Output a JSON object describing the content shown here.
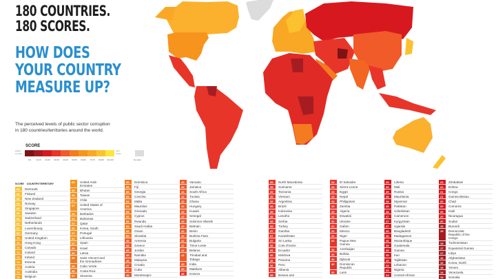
{
  "header": {
    "line1": "180 COUNTRIES.\n180 SCORES.",
    "line2": "HOW DOES\nYOUR COUNTRY\nMEASURE UP?"
  },
  "description": "The perceived levels of public sector corruption\nin 180 countries/territories around the world.",
  "legend": {
    "title": "SCORE",
    "low_label": "Highly Corrupt",
    "high_label": "Very Clean",
    "no_data": "No data",
    "ranges": [
      "0-9",
      "10-19",
      "20-29",
      "30-39",
      "40-49",
      "50-59",
      "60-69",
      "70-79",
      "80-89",
      "90-100"
    ],
    "colors": [
      "#7d1315",
      "#a51d22",
      "#d7191f",
      "#e8352a",
      "#f15a29",
      "#f47b20",
      "#f7941d",
      "#f9a825",
      "#fcc12e",
      "#fde53a"
    ],
    "no_data_color": "#dcdcdc"
  },
  "table": {
    "score_header": "SCORE",
    "country_header": "COUNTRY/TERRITORY",
    "columns": [
      [
        [
          88,
          "Denmark"
        ],
        [
          88,
          "Finland"
        ],
        [
          88,
          "New Zealand"
        ],
        [
          85,
          "Norway"
        ],
        [
          85,
          "Singapore"
        ],
        [
          85,
          "Sweden"
        ],
        [
          84,
          "Switzerland"
        ],
        [
          82,
          "Netherlands"
        ],
        [
          81,
          "Luxembourg"
        ],
        [
          80,
          "Germany"
        ],
        [
          78,
          "United Kingdom"
        ],
        [
          76,
          "Hong Kong"
        ],
        [
          74,
          "Canada"
        ],
        [
          74,
          "Iceland"
        ],
        [
          74,
          "Ireland"
        ],
        [
          74,
          "Estonia"
        ],
        [
          74,
          "Austria"
        ],
        [
          73,
          "Australia"
        ],
        [
          73,
          "Belgium"
        ]
      ],
      [
        [
          69,
          "United Arab\nEmirates"
        ],
        [
          68,
          "Bhutan"
        ],
        [
          68,
          "Taiwan"
        ],
        [
          67,
          "Chile"
        ],
        [
          67,
          "United States of\nAmerica"
        ],
        [
          65,
          "Barbados"
        ],
        [
          64,
          "Bahamas"
        ],
        [
          63,
          "Qatar"
        ],
        [
          62,
          "Korea, South"
        ],
        [
          62,
          "Portugal"
        ],
        [
          61,
          "Lithuania"
        ],
        [
          61,
          "Spain"
        ],
        [
          59,
          "Israel"
        ],
        [
          59,
          "Latvia"
        ],
        [
          59,
          "Saint Vincent and\nthe Grenadines"
        ],
        [
          58,
          "Cabo Verde"
        ],
        [
          58,
          "Costa Rica"
        ],
        [
          57,
          "Slovenia"
        ]
      ],
      [
        [
          55,
          "Dominica"
        ],
        [
          55,
          "Fiji"
        ],
        [
          55,
          "Georgia"
        ],
        [
          54,
          "Czechia"
        ],
        [
          54,
          "Malta"
        ],
        [
          54,
          "Mauritius"
        ],
        [
          53,
          "Grenada"
        ],
        [
          53,
          "Cyprus"
        ],
        [
          53,
          "Rwanda"
        ],
        [
          53,
          "Saudi Arabia"
        ],
        [
          52,
          "Oman"
        ],
        [
          52,
          "Slovakia"
        ],
        [
          49,
          "Armenia"
        ],
        [
          49,
          "Greece"
        ],
        [
          49,
          "Jordan"
        ],
        [
          49,
          "Namibia"
        ],
        [
          48,
          "Malaysia"
        ],
        [
          47,
          "Croatia"
        ],
        [
          46,
          "Cuba"
        ],
        [
          46,
          "Montenegro"
        ]
      ],
      [
        [
          45,
          "Vanuatu"
        ],
        [
          44,
          "Jamaica"
        ],
        [
          44,
          "South Africa"
        ],
        [
          44,
          "Tunisia"
        ],
        [
          43,
          "Ghana"
        ],
        [
          43,
          "Hungary"
        ],
        [
          43,
          "Kuwait"
        ],
        [
          43,
          "Senegal"
        ],
        [
          43,
          "Solomon Islands"
        ],
        [
          42,
          "Bahrain"
        ],
        [
          42,
          "Benin"
        ],
        [
          42,
          "Burkina Faso"
        ],
        [
          42,
          "Bulgaria"
        ],
        [
          41,
          "Timor-Leste"
        ],
        [
          41,
          "Belarus"
        ],
        [
          41,
          "Trinidad and\nTobago"
        ],
        [
          40,
          "India"
        ],
        [
          40,
          "Maldives"
        ],
        [
          39,
          "Kosovo"
        ]
      ],
      [
        [
          39,
          "North Macedonia"
        ],
        [
          39,
          "Suriname"
        ],
        [
          39,
          "Tanzania"
        ],
        [
          39,
          "Vietnam"
        ],
        [
          38,
          "Argentina"
        ],
        [
          38,
          "Brazil"
        ],
        [
          38,
          "Indonesia"
        ],
        [
          38,
          "Lesotho"
        ],
        [
          38,
          "Serbia"
        ],
        [
          38,
          "Turkey"
        ],
        [
          37,
          "Gambia"
        ],
        [
          37,
          "Kazakhstan"
        ],
        [
          37,
          "Sri Lanka"
        ],
        [
          36,
          "Cote d'Ivoire"
        ],
        [
          36,
          "Ecuador"
        ],
        [
          36,
          "Moldova"
        ],
        [
          36,
          "Panama"
        ],
        [
          36,
          "Peru"
        ],
        [
          35,
          "Albania"
        ],
        [
          35,
          "Bosnia and"
        ]
      ],
      [
        [
          34,
          "El Salvador"
        ],
        [
          34,
          "Sierra Leone"
        ],
        [
          33,
          "Egypt"
        ],
        [
          33,
          "Nepal"
        ],
        [
          33,
          "Philippines"
        ],
        [
          33,
          "Zambia"
        ],
        [
          33,
          "Algeria"
        ],
        [
          32,
          "Eswatini"
        ],
        [
          32,
          "Ukraine"
        ],
        [
          31,
          "Gabon"
        ],
        [
          31,
          "Mexico"
        ],
        [
          31,
          "Niger"
        ],
        [
          31,
          "Papua New\nGuinea"
        ],
        [
          30,
          "Azerbaijan"
        ],
        [
          30,
          "Bolivia"
        ],
        [
          30,
          "Djibouti"
        ],
        [
          30,
          "Dominican\nRepublic"
        ],
        [
          30,
          "Laos"
        ]
      ],
      [
        [
          29,
          "Liberia"
        ],
        [
          29,
          "Mali"
        ],
        [
          29,
          "Russia"
        ],
        [
          28,
          "Mauritania"
        ],
        [
          28,
          "Myanmar"
        ],
        [
          28,
          "Pakistan"
        ],
        [
          28,
          "Uzbekistan"
        ],
        [
          27,
          "Cameroon"
        ],
        [
          27,
          "Kyrgyzstan"
        ],
        [
          27,
          "Uganda"
        ],
        [
          26,
          "Bangladesh"
        ],
        [
          26,
          "Madagascar"
        ],
        [
          26,
          "Mozambique"
        ],
        [
          25,
          "Guatemala"
        ],
        [
          25,
          "Guinea"
        ],
        [
          25,
          "Iran"
        ],
        [
          25,
          "Tajikistan"
        ],
        [
          24,
          "Lebanon"
        ],
        [
          24,
          "Nigeria"
        ],
        [
          24,
          "Central African"
        ]
      ],
      [
        [
          23,
          "Zimbabwe"
        ],
        [
          22,
          "Eritrea"
        ],
        [
          21,
          "Congo"
        ],
        [
          21,
          "Guinea Bissau"
        ],
        [
          20,
          "Chad"
        ],
        [
          20,
          "Comoros"
        ],
        [
          20,
          "Haiti"
        ],
        [
          20,
          "Nicaragua"
        ],
        [
          20,
          "Sudan"
        ],
        [
          19,
          "Burundi"
        ],
        [
          19,
          "Democratic\nRepublic of the\nCongo"
        ],
        [
          19,
          "Turkmenistan"
        ],
        [
          17,
          "Equatorial Guinea"
        ],
        [
          17,
          "Libya"
        ],
        [
          16,
          "Afghanistan"
        ],
        [
          16,
          "Korea, North"
        ],
        [
          16,
          "Yemen"
        ],
        [
          14,
          "Venezuela"
        ],
        [
          13,
          "Somalia"
        ]
      ]
    ]
  }
}
